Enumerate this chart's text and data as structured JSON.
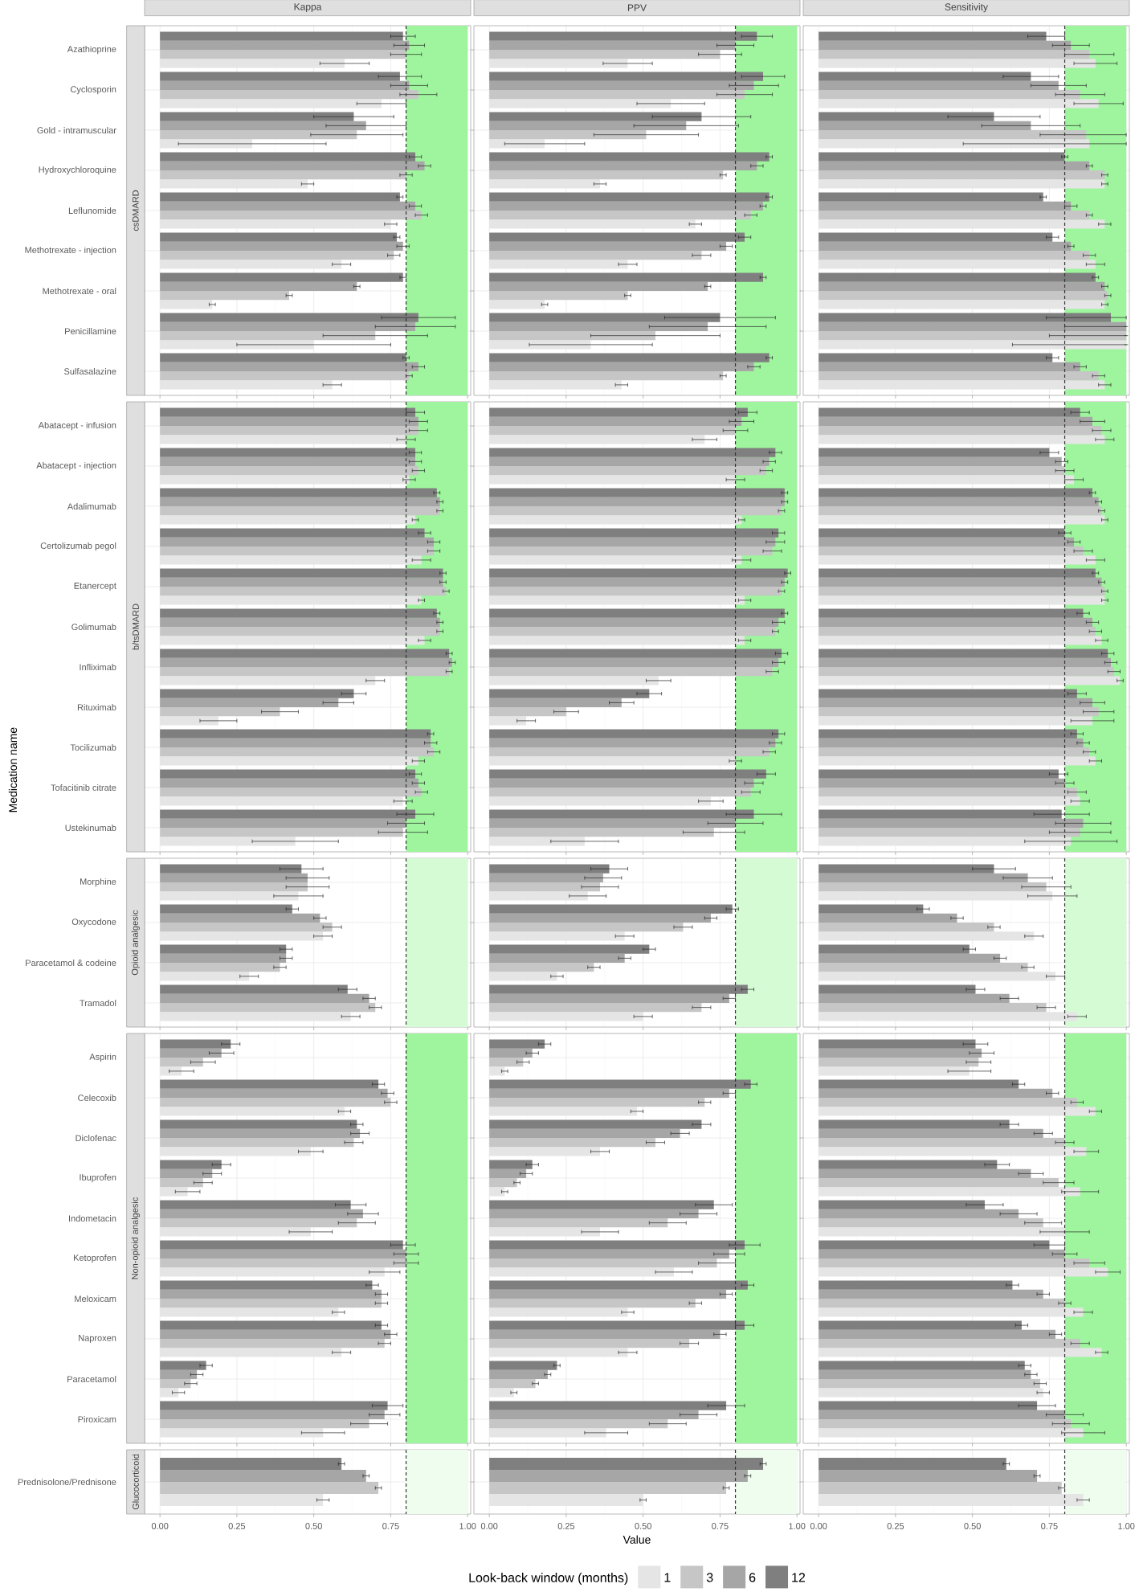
{
  "chart_data": [
    {
      "type": "bar",
      "orientation": "horizontal",
      "title": "Kappa",
      "subtitle": "csDMARD",
      "tick_labels": "y",
      "grid": true,
      "categories": [
        "Azathioprine",
        "Cyclosporin",
        "Gold - intramuscular",
        "Hydroxychloroquine",
        "Leflunomide",
        "Methotrexate - injection",
        "Methotrexate - oral",
        "Penicillamine",
        "Sulfasalazine"
      ],
      "series": [
        {
          "color": "#e5e5e5",
          "values": [
            0.6,
            0.72,
            0.3,
            0.48,
            0.75,
            0.59,
            0.17,
            0.5,
            0.56
          ],
          "errors": [
            0.08,
            0.08,
            0.24,
            0.02,
            0.02,
            0.03,
            0.01,
            0.25,
            0.03
          ]
        },
        {
          "color": "#c6c6c6",
          "values": [
            0.8,
            0.84,
            0.64,
            0.8,
            0.85,
            0.76,
            0.42,
            0.7,
            0.81
          ],
          "errors": [
            0.05,
            0.06,
            0.15,
            0.02,
            0.02,
            0.02,
            0.01,
            0.17,
            0.01
          ]
        },
        {
          "color": "#a6a6a6",
          "values": [
            0.81,
            0.81,
            0.67,
            0.86,
            0.83,
            0.79,
            0.64,
            0.83,
            0.84
          ],
          "errors": [
            0.05,
            0.06,
            0.13,
            0.02,
            0.02,
            0.02,
            0.01,
            0.13,
            0.02
          ]
        },
        {
          "color": "#7f7f7f",
          "values": [
            0.79,
            0.78,
            0.63,
            0.83,
            0.78,
            0.77,
            0.79,
            0.84,
            0.8
          ],
          "errors": [
            0.04,
            0.07,
            0.13,
            0.02,
            0.01,
            0.01,
            0.01,
            0.12,
            0.01
          ]
        }
      ],
      "xlim": [
        -0.05,
        1.01
      ],
      "xticks": [
        {
          "value": 0,
          "label": null
        },
        {
          "value": 0.25,
          "label": null
        },
        {
          "value": 0.5,
          "label": null
        },
        {
          "value": 0.75,
          "label": null
        },
        {
          "value": 1,
          "label": null
        }
      ],
      "bands": [
        {
          "axis": "x",
          "from": 0.8,
          "to": 1.0,
          "color": "#9ef59e"
        }
      ],
      "ref_lines": [
        {
          "axis": "x",
          "value": 0.8,
          "line_style": "dashed",
          "color": "#333333"
        }
      ]
    },
    {
      "type": "bar",
      "orientation": "horizontal",
      "title": "PPV",
      "tick_labels": false,
      "grid": true,
      "categories": [
        null,
        null,
        null,
        null,
        null,
        null,
        null,
        null,
        null
      ],
      "series": [
        {
          "color": "#e5e5e5",
          "values": [
            0.45,
            0.59,
            0.18,
            0.36,
            0.67,
            0.45,
            0.18,
            0.33,
            0.43
          ],
          "errors": [
            0.08,
            0.11,
            0.13,
            0.02,
            0.02,
            0.03,
            0.01,
            0.2,
            0.02
          ]
        },
        {
          "color": "#c6c6c6",
          "values": [
            0.75,
            0.83,
            0.51,
            0.76,
            0.85,
            0.69,
            0.45,
            0.54,
            0.76
          ],
          "errors": [
            0.07,
            0.09,
            0.17,
            0.01,
            0.02,
            0.03,
            0.01,
            0.21,
            0.01
          ]
        },
        {
          "color": "#a6a6a6",
          "values": [
            0.8,
            0.86,
            0.64,
            0.87,
            0.89,
            0.77,
            0.71,
            0.71,
            0.86
          ],
          "errors": [
            0.06,
            0.08,
            0.17,
            0.02,
            0.01,
            0.02,
            0.01,
            0.19,
            0.02
          ]
        },
        {
          "color": "#7f7f7f",
          "values": [
            0.87,
            0.89,
            0.69,
            0.91,
            0.91,
            0.83,
            0.89,
            0.75,
            0.91
          ],
          "errors": [
            0.05,
            0.07,
            0.16,
            0.01,
            0.01,
            0.02,
            0.01,
            0.18,
            0.01
          ]
        }
      ],
      "xlim": [
        -0.05,
        1.01
      ],
      "xticks": [
        {
          "value": 0,
          "label": null
        },
        {
          "value": 0.25,
          "label": null
        },
        {
          "value": 0.5,
          "label": null
        },
        {
          "value": 0.75,
          "label": null
        },
        {
          "value": 1,
          "label": null
        }
      ],
      "bands": [
        {
          "axis": "x",
          "from": 0.8,
          "to": 1.0,
          "color": "#9ef59e"
        }
      ],
      "ref_lines": [
        {
          "axis": "x",
          "value": 0.8,
          "line_style": "dashed",
          "color": "#333333"
        }
      ]
    },
    {
      "type": "bar",
      "orientation": "horizontal",
      "title": "Sensitivity",
      "tick_labels": false,
      "grid": true,
      "categories": [
        null,
        null,
        null,
        null,
        null,
        null,
        null,
        null,
        null
      ],
      "series": [
        {
          "color": "#e5e5e5",
          "values": [
            0.9,
            0.91,
            0.88,
            0.93,
            0.93,
            0.9,
            0.93,
            1.0,
            0.93
          ],
          "errors": [
            0.07,
            0.08,
            [
              0.47,
              1.0
            ],
            0.01,
            0.02,
            0.03,
            0.01,
            [
              0.63,
              1.0
            ],
            0.02
          ]
        },
        {
          "color": "#c6c6c6",
          "values": [
            0.88,
            0.85,
            0.87,
            0.93,
            0.88,
            0.88,
            0.94,
            1.0,
            0.91
          ],
          "errors": [
            0.08,
            0.08,
            [
              0.72,
              1.0
            ],
            0.01,
            0.01,
            0.02,
            0.01,
            [
              0.75,
              1.0
            ],
            0.02
          ]
        },
        {
          "color": "#a6a6a6",
          "values": [
            0.82,
            0.78,
            0.69,
            0.88,
            0.82,
            0.82,
            0.93,
            1.0,
            0.85
          ],
          "errors": [
            0.06,
            0.09,
            0.16,
            0.01,
            0.02,
            0.01,
            0.01,
            [
              0.8,
              1.0
            ],
            0.02
          ]
        },
        {
          "color": "#7f7f7f",
          "values": [
            0.74,
            0.69,
            0.57,
            0.8,
            0.73,
            0.76,
            0.9,
            0.95,
            0.76
          ],
          "errors": [
            0.06,
            0.09,
            0.15,
            0.01,
            0.01,
            0.02,
            0.01,
            [
              0.74,
              1.0
            ],
            0.02
          ]
        }
      ],
      "xlim": [
        -0.05,
        1.01
      ],
      "xticks": [
        {
          "value": 0,
          "label": null
        },
        {
          "value": 0.25,
          "label": null
        },
        {
          "value": 0.5,
          "label": null
        },
        {
          "value": 0.75,
          "label": null
        },
        {
          "value": 1,
          "label": null
        }
      ],
      "bands": [
        {
          "axis": "x",
          "from": 0.8,
          "to": 1.0,
          "color": "#9ef59e"
        }
      ],
      "ref_lines": [
        {
          "axis": "x",
          "value": 0.8,
          "line_style": "dashed",
          "color": "#333333"
        }
      ]
    },
    {
      "type": "bar",
      "orientation": "horizontal",
      "subtitle": "b/tsDMARD",
      "ylabel": "Medication name",
      "tick_labels": "y",
      "grid": true,
      "categories": [
        "Abatacept - infusion",
        "Abatacept - injection",
        "Adalimumab",
        "Certolizumab pegol",
        "Etanercept",
        "Golimumab",
        "Infliximab",
        "Rituximab",
        "Tocilizumab",
        "Tofacitinib citrate",
        "Ustekinumab"
      ],
      "series": [
        {
          "color": "#e5e5e5",
          "values": [
            0.8,
            0.81,
            0.83,
            0.85,
            0.85,
            0.86,
            0.7,
            0.19,
            0.84,
            0.79,
            0.44
          ],
          "errors": [
            0.03,
            0.02,
            0.01,
            0.03,
            0.01,
            0.02,
            0.03,
            0.06,
            0.02,
            0.03,
            0.14
          ]
        },
        {
          "color": "#c6c6c6",
          "values": [
            0.84,
            0.84,
            0.91,
            0.89,
            0.93,
            0.91,
            0.94,
            0.39,
            0.89,
            0.85,
            0.79
          ],
          "errors": [
            0.03,
            0.02,
            0.01,
            0.02,
            0.01,
            0.01,
            0.01,
            0.06,
            0.02,
            0.02,
            0.08
          ]
        },
        {
          "color": "#a6a6a6",
          "values": [
            0.84,
            0.83,
            0.91,
            0.89,
            0.92,
            0.91,
            0.95,
            0.58,
            0.88,
            0.84,
            0.8
          ],
          "errors": [
            0.03,
            0.02,
            0.01,
            0.02,
            0.01,
            0.01,
            0.01,
            0.05,
            0.02,
            0.02,
            0.06
          ]
        },
        {
          "color": "#7f7f7f",
          "values": [
            0.83,
            0.83,
            0.9,
            0.86,
            0.92,
            0.9,
            0.94,
            0.63,
            0.88,
            0.83,
            0.83
          ],
          "errors": [
            0.03,
            0.02,
            0.01,
            0.02,
            0.01,
            0.01,
            0.01,
            0.04,
            0.01,
            0.02,
            0.06
          ]
        }
      ],
      "xlim": [
        -0.05,
        1.01
      ],
      "xticks": [
        {
          "value": 0,
          "label": null
        },
        {
          "value": 0.25,
          "label": null
        },
        {
          "value": 0.5,
          "label": null
        },
        {
          "value": 0.75,
          "label": null
        },
        {
          "value": 1,
          "label": null
        }
      ],
      "bands": [
        {
          "axis": "x",
          "from": 0.8,
          "to": 1.0,
          "color": "#9ef59e"
        }
      ],
      "ref_lines": [
        {
          "axis": "x",
          "value": 0.8,
          "line_style": "dashed",
          "color": "#333333"
        }
      ]
    },
    {
      "type": "bar",
      "orientation": "horizontal",
      "tick_labels": false,
      "grid": true,
      "categories": [
        null,
        null,
        null,
        null,
        null,
        null,
        null,
        null,
        null,
        null,
        null
      ],
      "series": [
        {
          "color": "#e5e5e5",
          "values": [
            0.7,
            0.8,
            0.82,
            0.82,
            0.83,
            0.83,
            0.55,
            0.12,
            0.8,
            0.72,
            0.31
          ],
          "errors": [
            0.04,
            0.03,
            0.01,
            0.03,
            0.02,
            0.02,
            0.04,
            0.03,
            0.02,
            0.04,
            0.11
          ]
        },
        {
          "color": "#c6c6c6",
          "values": [
            0.8,
            0.9,
            0.95,
            0.92,
            0.95,
            0.93,
            0.92,
            0.25,
            0.91,
            0.85,
            0.73
          ],
          "errors": [
            0.04,
            0.02,
            0.01,
            0.03,
            0.01,
            0.01,
            0.02,
            0.04,
            0.02,
            0.03,
            0.1
          ]
        },
        {
          "color": "#a6a6a6",
          "values": [
            0.82,
            0.91,
            0.96,
            0.93,
            0.96,
            0.94,
            0.94,
            0.43,
            0.93,
            0.86,
            0.8
          ],
          "errors": [
            0.04,
            0.02,
            0.01,
            0.03,
            0.01,
            0.02,
            0.02,
            0.04,
            0.02,
            0.03,
            0.09
          ]
        },
        {
          "color": "#7f7f7f",
          "values": [
            0.84,
            0.93,
            0.96,
            0.94,
            0.97,
            0.96,
            0.95,
            0.52,
            0.94,
            0.9,
            0.86
          ],
          "errors": [
            0.03,
            0.02,
            0.01,
            0.02,
            0.01,
            0.01,
            0.02,
            0.04,
            0.02,
            0.03,
            0.09
          ]
        }
      ],
      "xlim": [
        -0.05,
        1.01
      ],
      "xticks": [
        {
          "value": 0,
          "label": null
        },
        {
          "value": 0.25,
          "label": null
        },
        {
          "value": 0.5,
          "label": null
        },
        {
          "value": 0.75,
          "label": null
        },
        {
          "value": 1,
          "label": null
        }
      ],
      "bands": [
        {
          "axis": "x",
          "from": 0.8,
          "to": 1.0,
          "color": "#9ef59e"
        }
      ],
      "ref_lines": [
        {
          "axis": "x",
          "value": 0.8,
          "line_style": "dashed",
          "color": "#333333"
        }
      ]
    },
    {
      "type": "bar",
      "orientation": "horizontal",
      "tick_labels": false,
      "grid": true,
      "categories": [
        null,
        null,
        null,
        null,
        null,
        null,
        null,
        null,
        null,
        null,
        null
      ],
      "series": [
        {
          "color": "#e5e5e5",
          "values": [
            0.93,
            0.83,
            0.93,
            0.9,
            0.93,
            0.92,
            0.98,
            0.89,
            0.9,
            0.85,
            0.82
          ],
          "errors": [
            0.03,
            0.03,
            0.01,
            0.03,
            0.01,
            0.02,
            0.01,
            0.07,
            0.02,
            0.03,
            0.15
          ]
        },
        {
          "color": "#c6c6c6",
          "values": [
            0.92,
            0.8,
            0.92,
            0.86,
            0.93,
            0.9,
            0.96,
            0.91,
            0.88,
            0.84,
            0.85
          ],
          "errors": [
            0.03,
            0.03,
            0.01,
            0.03,
            0.01,
            0.02,
            0.02,
            0.05,
            0.02,
            0.03,
            0.1
          ]
        },
        {
          "color": "#a6a6a6",
          "values": [
            0.89,
            0.79,
            0.91,
            0.83,
            0.92,
            0.89,
            0.95,
            0.89,
            0.86,
            0.8,
            0.86
          ],
          "errors": [
            0.04,
            0.02,
            0.01,
            0.02,
            0.01,
            0.02,
            0.02,
            0.04,
            0.02,
            0.03,
            0.09
          ]
        },
        {
          "color": "#7f7f7f",
          "values": [
            0.85,
            0.75,
            0.89,
            0.8,
            0.9,
            0.86,
            0.94,
            0.84,
            0.84,
            0.78,
            0.79
          ],
          "errors": [
            0.03,
            0.03,
            0.01,
            0.02,
            0.01,
            0.02,
            0.02,
            0.03,
            0.02,
            0.03,
            0.09
          ]
        }
      ],
      "xlim": [
        -0.05,
        1.01
      ],
      "xticks": [
        {
          "value": 0,
          "label": null
        },
        {
          "value": 0.25,
          "label": null
        },
        {
          "value": 0.5,
          "label": null
        },
        {
          "value": 0.75,
          "label": null
        },
        {
          "value": 1,
          "label": null
        }
      ],
      "bands": [
        {
          "axis": "x",
          "from": 0.8,
          "to": 1.0,
          "color": "#9ef59e"
        }
      ],
      "ref_lines": [
        {
          "axis": "x",
          "value": 0.8,
          "line_style": "dashed",
          "color": "#333333"
        }
      ]
    },
    {
      "type": "bar",
      "orientation": "horizontal",
      "subtitle": "Opioid analgesic",
      "tick_labels": "y",
      "grid": true,
      "categories": [
        "Morphine",
        "Oxycodone",
        "Paracetamol & codeine",
        "Tramadol"
      ],
      "series": [
        {
          "color": "#e5e5e5",
          "values": [
            0.45,
            0.53,
            0.29,
            0.62
          ],
          "errors": [
            0.08,
            0.03,
            0.03,
            0.03
          ]
        },
        {
          "color": "#c6c6c6",
          "values": [
            0.48,
            0.56,
            0.39,
            0.7
          ],
          "errors": [
            0.07,
            0.03,
            0.02,
            0.02
          ]
        },
        {
          "color": "#a6a6a6",
          "values": [
            0.48,
            0.52,
            0.41,
            0.68
          ],
          "errors": [
            0.07,
            0.02,
            0.02,
            0.02
          ]
        },
        {
          "color": "#7f7f7f",
          "values": [
            0.46,
            0.43,
            0.41,
            0.61
          ],
          "errors": [
            0.07,
            0.02,
            0.02,
            0.03
          ]
        }
      ],
      "xlim": [
        -0.05,
        1.01
      ],
      "xticks": [
        {
          "value": 0,
          "label": null
        },
        {
          "value": 0.25,
          "label": null
        },
        {
          "value": 0.5,
          "label": null
        },
        {
          "value": 0.75,
          "label": null
        },
        {
          "value": 1,
          "label": null
        }
      ],
      "bands": [
        {
          "axis": "x",
          "from": 0.8,
          "to": 1.0,
          "color": "#d5fbd5"
        }
      ],
      "ref_lines": [
        {
          "axis": "x",
          "value": 0.8,
          "line_style": "dashed",
          "color": "#333333"
        }
      ]
    },
    {
      "type": "bar",
      "orientation": "horizontal",
      "tick_labels": false,
      "grid": true,
      "categories": [
        null,
        null,
        null,
        null
      ],
      "series": [
        {
          "color": "#e5e5e5",
          "values": [
            0.32,
            0.44,
            0.22,
            0.5
          ],
          "errors": [
            0.06,
            0.03,
            0.02,
            0.03
          ]
        },
        {
          "color": "#c6c6c6",
          "values": [
            0.36,
            0.63,
            0.34,
            0.69
          ],
          "errors": [
            0.06,
            0.03,
            0.02,
            0.03
          ]
        },
        {
          "color": "#a6a6a6",
          "values": [
            0.37,
            0.72,
            0.44,
            0.78
          ],
          "errors": [
            0.06,
            0.02,
            0.02,
            0.02
          ]
        },
        {
          "color": "#7f7f7f",
          "values": [
            0.39,
            0.79,
            0.52,
            0.84
          ],
          "errors": [
            0.06,
            0.02,
            0.02,
            0.02
          ]
        }
      ],
      "xlim": [
        -0.05,
        1.01
      ],
      "xticks": [
        {
          "value": 0,
          "label": null
        },
        {
          "value": 0.25,
          "label": null
        },
        {
          "value": 0.5,
          "label": null
        },
        {
          "value": 0.75,
          "label": null
        },
        {
          "value": 1,
          "label": null
        }
      ],
      "bands": [
        {
          "axis": "x",
          "from": 0.8,
          "to": 1.0,
          "color": "#d5fbd5"
        }
      ],
      "ref_lines": [
        {
          "axis": "x",
          "value": 0.8,
          "line_style": "dashed",
          "color": "#333333"
        }
      ]
    },
    {
      "type": "bar",
      "orientation": "horizontal",
      "tick_labels": false,
      "grid": true,
      "categories": [
        null,
        null,
        null,
        null
      ],
      "series": [
        {
          "color": "#e5e5e5",
          "values": [
            0.76,
            0.7,
            0.77,
            0.84
          ],
          "errors": [
            0.08,
            0.03,
            0.03,
            0.03
          ]
        },
        {
          "color": "#c6c6c6",
          "values": [
            0.74,
            0.57,
            0.68,
            0.74
          ],
          "errors": [
            0.08,
            0.02,
            0.02,
            0.03
          ]
        },
        {
          "color": "#a6a6a6",
          "values": [
            0.68,
            0.45,
            0.59,
            0.62
          ],
          "errors": [
            0.08,
            0.02,
            0.02,
            0.03
          ]
        },
        {
          "color": "#7f7f7f",
          "values": [
            0.57,
            0.34,
            0.49,
            0.51
          ],
          "errors": [
            0.07,
            0.02,
            0.02,
            0.03
          ]
        }
      ],
      "xlim": [
        -0.05,
        1.01
      ],
      "xticks": [
        {
          "value": 0,
          "label": null
        },
        {
          "value": 0.25,
          "label": null
        },
        {
          "value": 0.5,
          "label": null
        },
        {
          "value": 0.75,
          "label": null
        },
        {
          "value": 1,
          "label": null
        }
      ],
      "bands": [
        {
          "axis": "x",
          "from": 0.8,
          "to": 1.0,
          "color": "#d5fbd5"
        }
      ],
      "ref_lines": [
        {
          "axis": "x",
          "value": 0.8,
          "line_style": "dashed",
          "color": "#333333"
        }
      ]
    },
    {
      "type": "bar",
      "orientation": "horizontal",
      "subtitle": "Non-opioid analgesic",
      "tick_labels": "y",
      "grid": true,
      "categories": [
        "Aspirin",
        "Celecoxib",
        "Diclofenac",
        "Ibuprofen",
        "Indometacin",
        "Ketoprofen",
        "Meloxicam",
        "Naproxen",
        "Paracetamol",
        "Piroxicam"
      ],
      "series": [
        {
          "color": "#e5e5e5",
          "values": [
            0.07,
            0.6,
            0.49,
            0.09,
            0.49,
            0.73,
            0.58,
            0.59,
            0.06,
            0.53
          ],
          "errors": [
            0.04,
            0.02,
            0.04,
            0.04,
            0.07,
            0.05,
            0.02,
            0.03,
            0.02,
            0.07
          ]
        },
        {
          "color": "#c6c6c6",
          "values": [
            0.14,
            0.75,
            0.63,
            0.14,
            0.64,
            0.8,
            0.72,
            0.73,
            0.1,
            0.68
          ],
          "errors": [
            0.04,
            0.02,
            0.03,
            0.03,
            0.06,
            0.04,
            0.02,
            0.02,
            0.02,
            0.06
          ]
        },
        {
          "color": "#a6a6a6",
          "values": [
            0.2,
            0.74,
            0.65,
            0.17,
            0.66,
            0.8,
            0.72,
            0.75,
            0.12,
            0.73
          ],
          "errors": [
            0.04,
            0.02,
            0.03,
            0.03,
            0.05,
            0.04,
            0.02,
            0.02,
            0.02,
            0.05
          ]
        },
        {
          "color": "#7f7f7f",
          "values": [
            0.23,
            0.71,
            0.64,
            0.2,
            0.62,
            0.79,
            0.69,
            0.72,
            0.15,
            0.74
          ],
          "errors": [
            0.03,
            0.02,
            0.02,
            0.03,
            0.05,
            0.04,
            0.02,
            0.02,
            0.02,
            0.05
          ]
        }
      ],
      "xlim": [
        -0.05,
        1.01
      ],
      "xticks": [
        {
          "value": 0,
          "label": null
        },
        {
          "value": 0.25,
          "label": null
        },
        {
          "value": 0.5,
          "label": null
        },
        {
          "value": 0.75,
          "label": null
        },
        {
          "value": 1,
          "label": null
        }
      ],
      "bands": [
        {
          "axis": "x",
          "from": 0.8,
          "to": 1.0,
          "color": "#9ef59e"
        }
      ],
      "ref_lines": [
        {
          "axis": "x",
          "value": 0.8,
          "line_style": "dashed",
          "color": "#333333"
        }
      ]
    },
    {
      "type": "bar",
      "orientation": "horizontal",
      "tick_labels": false,
      "grid": true,
      "categories": [
        null,
        null,
        null,
        null,
        null,
        null,
        null,
        null,
        null,
        null
      ],
      "series": [
        {
          "color": "#e5e5e5",
          "values": [
            0.05,
            0.48,
            0.36,
            0.05,
            0.36,
            0.6,
            0.45,
            0.45,
            0.08,
            0.38
          ],
          "errors": [
            0.01,
            0.02,
            0.03,
            0.01,
            0.06,
            0.06,
            0.02,
            0.03,
            0.01,
            0.07
          ]
        },
        {
          "color": "#c6c6c6",
          "values": [
            0.11,
            0.7,
            0.54,
            0.09,
            0.58,
            0.74,
            0.67,
            0.65,
            0.15,
            0.58
          ],
          "errors": [
            0.02,
            0.02,
            0.03,
            0.01,
            0.06,
            0.06,
            0.02,
            0.03,
            0.01,
            0.06
          ]
        },
        {
          "color": "#a6a6a6",
          "values": [
            0.14,
            0.78,
            0.62,
            0.12,
            0.68,
            0.78,
            0.77,
            0.75,
            0.19,
            0.68
          ],
          "errors": [
            0.02,
            0.02,
            0.03,
            0.02,
            0.06,
            0.05,
            0.02,
            0.02,
            0.01,
            0.06
          ]
        },
        {
          "color": "#7f7f7f",
          "values": [
            0.18,
            0.85,
            0.69,
            0.14,
            0.73,
            0.83,
            0.84,
            0.83,
            0.22,
            0.77
          ],
          "errors": [
            0.02,
            0.02,
            0.03,
            0.02,
            0.06,
            0.05,
            0.02,
            0.03,
            0.01,
            0.06
          ]
        }
      ],
      "xlim": [
        -0.05,
        1.01
      ],
      "xticks": [
        {
          "value": 0,
          "label": null
        },
        {
          "value": 0.25,
          "label": null
        },
        {
          "value": 0.5,
          "label": null
        },
        {
          "value": 0.75,
          "label": null
        },
        {
          "value": 1,
          "label": null
        }
      ],
      "bands": [
        {
          "axis": "x",
          "from": 0.8,
          "to": 1.0,
          "color": "#9ef59e"
        }
      ],
      "ref_lines": [
        {
          "axis": "x",
          "value": 0.8,
          "line_style": "dashed",
          "color": "#333333"
        }
      ]
    },
    {
      "type": "bar",
      "orientation": "horizontal",
      "tick_labels": false,
      "grid": true,
      "categories": [
        null,
        null,
        null,
        null,
        null,
        null,
        null,
        null,
        null,
        null
      ],
      "series": [
        {
          "color": "#e5e5e5",
          "values": [
            0.49,
            0.9,
            0.87,
            0.85,
            0.8,
            0.94,
            0.86,
            0.92,
            0.73,
            0.86
          ],
          "errors": [
            0.07,
            0.02,
            0.04,
            0.06,
            0.08,
            0.04,
            0.03,
            0.02,
            0.02,
            0.07
          ]
        },
        {
          "color": "#c6c6c6",
          "values": [
            0.52,
            0.84,
            0.8,
            0.78,
            0.73,
            0.88,
            0.8,
            0.85,
            0.72,
            0.82
          ],
          "errors": [
            0.04,
            0.02,
            0.03,
            0.05,
            0.06,
            0.05,
            0.02,
            0.03,
            0.02,
            0.06
          ]
        },
        {
          "color": "#a6a6a6",
          "values": [
            0.53,
            0.76,
            0.73,
            0.69,
            0.65,
            0.8,
            0.73,
            0.77,
            0.69,
            0.8
          ],
          "errors": [
            0.04,
            0.02,
            0.03,
            0.04,
            0.06,
            0.04,
            0.02,
            0.02,
            0.02,
            0.06
          ]
        },
        {
          "color": "#7f7f7f",
          "values": [
            0.51,
            0.65,
            0.62,
            0.58,
            0.54,
            0.75,
            0.63,
            0.66,
            0.67,
            0.71
          ],
          "errors": [
            0.04,
            0.02,
            0.03,
            0.04,
            0.06,
            0.05,
            0.02,
            0.02,
            0.02,
            0.06
          ]
        }
      ],
      "xlim": [
        -0.05,
        1.01
      ],
      "xticks": [
        {
          "value": 0,
          "label": null
        },
        {
          "value": 0.25,
          "label": null
        },
        {
          "value": 0.5,
          "label": null
        },
        {
          "value": 0.75,
          "label": null
        },
        {
          "value": 1,
          "label": null
        }
      ],
      "bands": [
        {
          "axis": "x",
          "from": 0.8,
          "to": 1.0,
          "color": "#9ef59e"
        }
      ],
      "ref_lines": [
        {
          "axis": "x",
          "value": 0.8,
          "line_style": "dashed",
          "color": "#333333"
        }
      ]
    },
    {
      "type": "bar",
      "orientation": "horizontal",
      "subtitle": "Glucocorticoid",
      "grid": true,
      "categories": [
        "Prednisolone/Prednisone"
      ],
      "series": [
        {
          "color": "#e5e5e5",
          "values": [
            0.53
          ],
          "errors": [
            0.02
          ]
        },
        {
          "color": "#c6c6c6",
          "values": [
            0.71
          ],
          "errors": [
            0.01
          ]
        },
        {
          "color": "#a6a6a6",
          "values": [
            0.67
          ],
          "errors": [
            0.01
          ]
        },
        {
          "color": "#7f7f7f",
          "values": [
            0.59
          ],
          "errors": [
            0.01
          ]
        }
      ],
      "xlim": [
        -0.05,
        1.01
      ],
      "xticks": [
        {
          "value": 0,
          "label": "0.00"
        },
        {
          "value": 0.25,
          "label": "0.25"
        },
        {
          "value": 0.5,
          "label": "0.50"
        },
        {
          "value": 0.75,
          "label": "0.75"
        },
        {
          "value": 1,
          "label": "1.00"
        }
      ],
      "bands": [
        {
          "axis": "x",
          "from": 0.8,
          "to": 1.0,
          "color": "#effdef"
        }
      ],
      "ref_lines": [
        {
          "axis": "x",
          "value": 0.8,
          "line_style": "dashed",
          "color": "#333333"
        }
      ]
    },
    {
      "type": "bar",
      "orientation": "horizontal",
      "xlabel": "Value",
      "tick_labels": "x",
      "grid": true,
      "legend": "bottom",
      "legend_title": "Look-back window (months)",
      "categories": [
        null
      ],
      "series": [
        {
          "name": "1",
          "color": "#e5e5e5",
          "values": [
            0.5
          ],
          "errors": [
            0.01
          ]
        },
        {
          "name": "3",
          "color": "#c6c6c6",
          "values": [
            0.77
          ],
          "errors": [
            0.01
          ]
        },
        {
          "name": "6",
          "color": "#a6a6a6",
          "values": [
            0.84
          ],
          "errors": [
            0.01
          ]
        },
        {
          "name": "12",
          "color": "#7f7f7f",
          "values": [
            0.89
          ],
          "errors": [
            0.01
          ]
        }
      ],
      "xlim": [
        -0.05,
        1.01
      ],
      "xticks": [
        {
          "value": 0,
          "label": "0.00"
        },
        {
          "value": 0.25,
          "label": "0.25"
        },
        {
          "value": 0.5,
          "label": "0.50"
        },
        {
          "value": 0.75,
          "label": "0.75"
        },
        {
          "value": 1,
          "label": "1.00"
        }
      ],
      "bands": [
        {
          "axis": "x",
          "from": 0.8,
          "to": 1.0,
          "color": "#effdef"
        }
      ],
      "ref_lines": [
        {
          "axis": "x",
          "value": 0.8,
          "line_style": "dashed",
          "color": "#333333"
        }
      ]
    },
    {
      "type": "bar",
      "orientation": "horizontal",
      "tick_labels": "x",
      "grid": true,
      "categories": [
        null
      ],
      "series": [
        {
          "color": "#e5e5e5",
          "values": [
            0.86
          ],
          "errors": [
            0.02
          ]
        },
        {
          "color": "#c6c6c6",
          "values": [
            0.79
          ],
          "errors": [
            0.01
          ]
        },
        {
          "color": "#a6a6a6",
          "values": [
            0.71
          ],
          "errors": [
            0.01
          ]
        },
        {
          "color": "#7f7f7f",
          "values": [
            0.61
          ],
          "errors": [
            0.01
          ]
        }
      ],
      "xlim": [
        -0.05,
        1.01
      ],
      "xticks": [
        {
          "value": 0,
          "label": "0.00"
        },
        {
          "value": 0.25,
          "label": "0.25"
        },
        {
          "value": 0.5,
          "label": "0.50"
        },
        {
          "value": 0.75,
          "label": "0.75"
        },
        {
          "value": 1,
          "label": "1.00"
        }
      ],
      "bands": [
        {
          "axis": "x",
          "from": 0.8,
          "to": 1.0,
          "color": "#effdef"
        }
      ],
      "ref_lines": [
        {
          "axis": "x",
          "value": 0.8,
          "line_style": "dashed",
          "color": "#333333"
        }
      ]
    }
  ]
}
